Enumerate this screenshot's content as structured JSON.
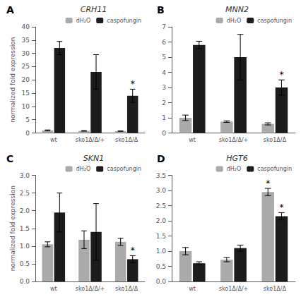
{
  "chart_data": [
    {
      "type": "bar",
      "title": "CRH11",
      "panel_label": "A",
      "ylabel": "normalized fold expression",
      "categories": [
        "wt",
        "sko1Δ/Δ/+",
        "sko1Δ/Δ"
      ],
      "series": [
        {
          "name": "dH₂O",
          "color": "#aaaaaa",
          "values": [
            1.0,
            0.8,
            0.7
          ],
          "errors": [
            0.15,
            0.12,
            0.1
          ]
        },
        {
          "name": "caspofungin",
          "color": "#1c1c1c",
          "values": [
            32.0,
            23.0,
            14.0
          ],
          "errors": [
            2.5,
            6.5,
            2.5
          ]
        }
      ],
      "ylim": [
        0,
        40
      ],
      "yticks": [
        0,
        5,
        10,
        15,
        20,
        25,
        30,
        35,
        40
      ],
      "annotations": [
        {
          "text": "*",
          "series": "caspofungin",
          "category": "sko1Δ/Δ"
        }
      ],
      "legend": "upper right",
      "grid": false
    },
    {
      "type": "bar",
      "title": "MNN2",
      "panel_label": "B",
      "categories": [
        "wt",
        "sko1Δ/Δ/+",
        "sko1Δ/Δ"
      ],
      "series": [
        {
          "name": "dH₂O",
          "color": "#aaaaaa",
          "values": [
            1.0,
            0.75,
            0.6
          ],
          "errors": [
            0.18,
            0.05,
            0.07
          ]
        },
        {
          "name": "caspofungin",
          "color": "#1c1c1c",
          "values": [
            5.8,
            5.0,
            3.0
          ],
          "errors": [
            0.25,
            1.5,
            0.5
          ]
        }
      ],
      "ylim": [
        0,
        7.0
      ],
      "yticks": [
        0,
        1,
        2,
        3,
        4,
        5,
        6,
        7
      ],
      "annotations": [
        {
          "text": "*",
          "series": "caspofungin",
          "category": "sko1Δ/Δ"
        }
      ],
      "legend": "upper right",
      "grid": false
    },
    {
      "type": "bar",
      "title": "SKN1",
      "panel_label": "C",
      "ylabel": "normalized fold expression",
      "categories": [
        "wt",
        "sko1Δ/Δ/+",
        "sko1Δ/Δ"
      ],
      "series": [
        {
          "name": "dH₂O",
          "color": "#aaaaaa",
          "values": [
            1.05,
            1.18,
            1.12
          ],
          "errors": [
            0.07,
            0.25,
            0.1
          ]
        },
        {
          "name": "caspofungin",
          "color": "#1c1c1c",
          "values": [
            1.95,
            1.4,
            0.63
          ],
          "errors": [
            0.55,
            0.8,
            0.1
          ]
        }
      ],
      "ylim": [
        0,
        3.0
      ],
      "yticks": [
        {
          "value": 0,
          "label": "0.0"
        },
        0.5,
        {
          "value": 1,
          "label": "1.0"
        },
        1.5,
        {
          "value": 2,
          "label": "2.0"
        },
        2.5,
        {
          "value": 3,
          "label": "3.0"
        }
      ],
      "annotations": [
        {
          "text": "*",
          "series": "caspofungin",
          "category": "sko1Δ/Δ"
        }
      ],
      "legend": "upper right",
      "grid": false
    },
    {
      "type": "bar",
      "title": "HGT6",
      "panel_label": "D",
      "categories": [
        "wt",
        "sko1Δ/Δ/+",
        "sko1Δ/Δ"
      ],
      "series": [
        {
          "name": "dH₂O",
          "color": "#aaaaaa",
          "values": [
            1.0,
            0.72,
            2.95
          ],
          "errors": [
            0.12,
            0.07,
            0.12
          ]
        },
        {
          "name": "caspofungin",
          "color": "#1c1c1c",
          "values": [
            0.6,
            1.1,
            2.15
          ],
          "errors": [
            0.05,
            0.1,
            0.12
          ]
        }
      ],
      "ylim": [
        0,
        3.5
      ],
      "yticks": [
        {
          "value": 0,
          "label": "0.0"
        },
        0.5,
        {
          "value": 1,
          "label": "1.0"
        },
        1.5,
        {
          "value": 2,
          "label": "2.0"
        },
        2.5,
        {
          "value": 3,
          "label": "3.0"
        },
        3.5
      ],
      "annotations": [
        {
          "text": "*",
          "series": "dH₂O",
          "category": "sko1Δ/Δ"
        },
        {
          "text": "*",
          "series": "caspofungin",
          "category": "sko1Δ/Δ"
        }
      ],
      "legend": "upper right",
      "grid": false
    }
  ]
}
